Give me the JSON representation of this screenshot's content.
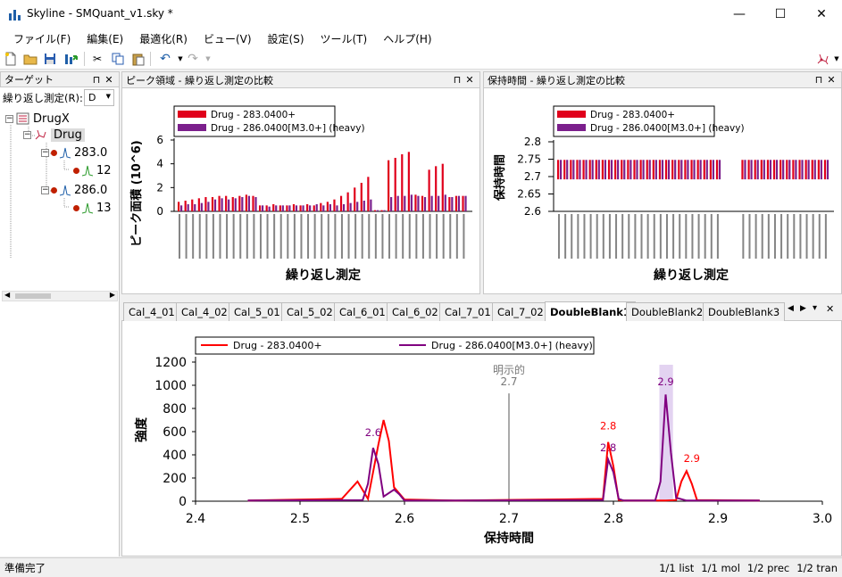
{
  "window": {
    "title": "Skyline - SMQuant_v1.sky *",
    "minimize": "—",
    "maximize": "☐",
    "close": "✕"
  },
  "menu": [
    "ファイル(F)",
    "編集(E)",
    "最適化(R)",
    "ビュー(V)",
    "設定(S)",
    "ツール(T)",
    "ヘルプ(H)"
  ],
  "toolbar_icons": [
    "new-file-icon",
    "open-folder-icon",
    "save-icon",
    "import-icon",
    "cut-icon",
    "copy-icon",
    "paste-icon",
    "undo-icon",
    "dropdown-icon",
    "redo-icon",
    "dropdown-icon",
    "molecule-icon"
  ],
  "targets": {
    "header": "ターゲット",
    "replicate_label": "繰り返し測定(R):",
    "replicate_value": "D",
    "tree": [
      {
        "label": "DrugX",
        "icon": "molecule-list-icon"
      },
      {
        "label": "Drug",
        "icon": "molecule-icon"
      },
      {
        "label": "283.0",
        "icon": "precursor-icon"
      },
      {
        "label": "12",
        "icon": "transition-icon"
      },
      {
        "label": "286.0",
        "icon": "precursor-icon"
      },
      {
        "label": "13",
        "icon": "transition-icon"
      }
    ]
  },
  "peak_area_pane": {
    "header": "ピーク領域 - 繰り返し測定の比較",
    "ylabel": "ピーク面積 (10^6)",
    "xlabel": "繰り返し測定",
    "legend": [
      "Drug - 283.0400+",
      "Drug - 286.0400[M3.0+] (heavy)"
    ],
    "yticks": [
      "0",
      "2",
      "4",
      "6"
    ]
  },
  "rt_pane": {
    "header": "保持時間 - 繰り返し測定の比較",
    "ylabel": "保持時間",
    "xlabel": "繰り返し測定",
    "legend": [
      "Drug - 283.0400+",
      "Drug - 286.0400[M3.0+] (heavy)"
    ],
    "yticks": [
      "2.6",
      "2.65",
      "2.7",
      "2.75",
      "2.8"
    ]
  },
  "tabs": [
    "Cal_4_01",
    "Cal_4_02",
    "Cal_5_01",
    "Cal_5_02",
    "Cal_6_01",
    "Cal_6_02",
    "Cal_7_01",
    "Cal_7_02",
    "DoubleBlank1",
    "DoubleBlank2",
    "DoubleBlank3"
  ],
  "active_tab": "DoubleBlank1",
  "chromatogram": {
    "legend": [
      "Drug - 283.0400+",
      "Drug - 286.0400[M3.0+] (heavy)"
    ],
    "ylabel": "強度",
    "xlabel": "保持時間",
    "explicit_label": "明示的",
    "explicit_rt": "2.7",
    "xticks": [
      "2.4",
      "2.5",
      "2.6",
      "2.7",
      "2.8",
      "2.9",
      "3.0"
    ],
    "yticks": [
      "0",
      "200",
      "400",
      "600",
      "800",
      "1000",
      "1200"
    ],
    "peak_labels": [
      "2.6",
      "2.8",
      "2.8",
      "2.9",
      "2.9"
    ]
  },
  "status": {
    "left": "準備完了",
    "items": [
      "1/1 list",
      "1/1 mol",
      "1/2 prec",
      "1/2 tran"
    ]
  },
  "colors": {
    "light": "#ff0000",
    "heavy": "#800080",
    "bar_light": "#e0001b",
    "bar_heavy": "#7b1f8c"
  },
  "chart_data": [
    {
      "type": "line",
      "title": "",
      "xlabel": "保持時間",
      "ylabel": "強度",
      "xlim": [
        2.4,
        3.0
      ],
      "ylim": [
        0,
        1200
      ],
      "series": [
        {
          "name": "Drug - 283.0400+",
          "x": [
            2.45,
            2.54,
            2.555,
            2.565,
            2.575,
            2.58,
            2.585,
            2.59,
            2.6,
            2.65,
            2.79,
            2.795,
            2.8,
            2.805,
            2.81,
            2.85,
            2.86,
            2.865,
            2.87,
            2.875,
            2.88,
            2.94
          ],
          "y": [
            5,
            20,
            170,
            20,
            490,
            700,
            520,
            120,
            15,
            5,
            20,
            510,
            300,
            10,
            5,
            5,
            10,
            170,
            260,
            150,
            10,
            5
          ]
        },
        {
          "name": "Drug - 286.0400[M3.0+] (heavy)",
          "x": [
            2.45,
            2.56,
            2.565,
            2.57,
            2.575,
            2.58,
            2.59,
            2.595,
            2.6,
            2.65,
            2.79,
            2.795,
            2.8,
            2.805,
            2.81,
            2.84,
            2.845,
            2.85,
            2.855,
            2.86,
            2.87,
            2.94
          ],
          "y": [
            5,
            10,
            150,
            460,
            320,
            40,
            100,
            60,
            5,
            5,
            10,
            360,
            250,
            20,
            5,
            5,
            170,
            920,
            420,
            30,
            5,
            5
          ]
        }
      ]
    },
    {
      "type": "bar",
      "title": "",
      "xlabel": "繰り返し測定",
      "ylabel": "ピーク面積 (10^6)",
      "ylim": [
        0,
        6
      ],
      "series": [
        {
          "name": "Drug - 283.0400+",
          "values": [
            0.8,
            0.9,
            1.0,
            1.1,
            1.2,
            1.2,
            1.3,
            1.3,
            1.2,
            1.3,
            1.4,
            1.3,
            0.5,
            0.5,
            0.6,
            0.5,
            0.5,
            0.6,
            0.5,
            0.6,
            0.5,
            0.7,
            0.8,
            1.0,
            1.3,
            1.6,
            2.0,
            2.4,
            2.9,
            0.1,
            0.1,
            4.3,
            4.5,
            4.8,
            5.0,
            1.4,
            1.3,
            3.5,
            3.8,
            4.0,
            1.2,
            1.3,
            1.3
          ]
        },
        {
          "name": "Drug - 286.0400[M3.0+] (heavy)",
          "values": [
            0.5,
            0.6,
            0.6,
            0.7,
            0.8,
            1.0,
            1.1,
            1.0,
            1.1,
            1.2,
            1.3,
            1.2,
            0.5,
            0.4,
            0.5,
            0.5,
            0.5,
            0.5,
            0.5,
            0.5,
            0.6,
            0.5,
            0.6,
            0.5,
            0.6,
            0.7,
            0.8,
            0.9,
            1.0,
            0.1,
            0.1,
            1.2,
            1.3,
            1.3,
            1.4,
            1.3,
            1.2,
            1.3,
            1.3,
            1.4,
            1.2,
            1.3,
            1.3
          ]
        }
      ]
    },
    {
      "type": "bar",
      "title": "",
      "xlabel": "繰り返し測定",
      "ylabel": "保持時間",
      "ylim": [
        2.6,
        2.8
      ],
      "series": [
        {
          "name": "Drug - 283.0400+",
          "values": [
            2.72,
            2.72,
            2.72,
            2.72,
            2.72,
            2.72,
            2.72,
            2.72,
            2.72,
            2.72,
            2.72,
            2.72,
            2.72,
            2.72,
            2.72,
            2.72,
            2.72,
            2.72,
            2.72,
            2.72,
            2.72,
            2.72,
            2.72,
            2.72,
            2.72,
            2.72,
            2.72,
            2.72,
            2.72,
            2.72,
            2.72,
            2.72,
            2.72,
            2.72,
            2.72,
            2.72,
            2.72,
            2.72,
            2.72,
            2.72
          ]
        },
        {
          "name": "Drug - 286.0400[M3.0+] (heavy)",
          "values": [
            2.72,
            2.72,
            2.72,
            2.72,
            2.72,
            2.72,
            2.72,
            2.72,
            2.72,
            2.72,
            2.72,
            2.72,
            2.72,
            2.72,
            2.72,
            2.72,
            2.72,
            2.72,
            2.72,
            2.72,
            2.72,
            2.72,
            2.72,
            2.72,
            2.72,
            2.72,
            2.72,
            2.72,
            2.72,
            2.72,
            2.72,
            2.72,
            2.72,
            2.72,
            2.72,
            2.72,
            2.72,
            2.72,
            2.72,
            2.72
          ]
        }
      ]
    }
  ]
}
